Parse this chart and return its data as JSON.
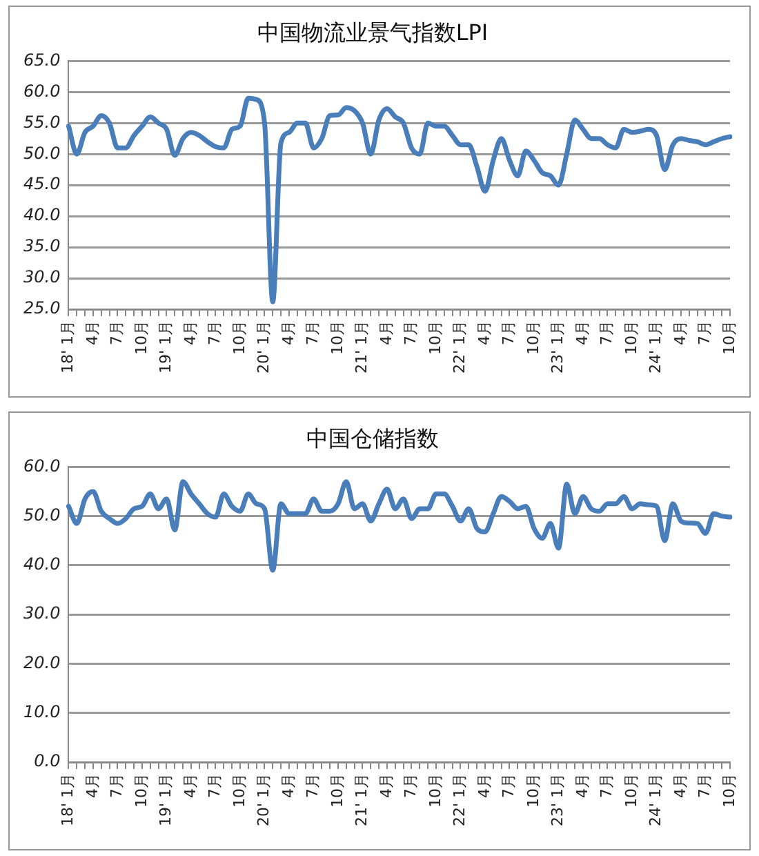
{
  "chart_data": [
    {
      "type": "line",
      "title": "中国物流业景气指数LPI",
      "grid": "y",
      "marker": "none",
      "categories": [
        "18' 1月",
        null,
        null,
        "4月",
        null,
        null,
        "7月",
        null,
        null,
        "10月",
        null,
        null,
        "19' 1月",
        null,
        null,
        "4月",
        null,
        null,
        "7月",
        null,
        null,
        "10月",
        null,
        null,
        "20' 1月",
        null,
        null,
        "4月",
        null,
        null,
        "7月",
        null,
        null,
        "10月",
        null,
        null,
        "21' 1月",
        null,
        null,
        "4月",
        null,
        null,
        "7月",
        null,
        null,
        "10月",
        null,
        null,
        "22' 1月",
        null,
        null,
        "4月",
        null,
        null,
        "7月",
        null,
        null,
        "10月",
        null,
        null,
        "23' 1月",
        null,
        null,
        "4月",
        null,
        null,
        "7月",
        null,
        null,
        "10月",
        null,
        null,
        "24' 1月",
        null,
        null,
        "4月",
        null,
        null,
        "7月",
        null,
        null,
        "10月"
      ],
      "series": [
        {
          "color": "#4a7ebb",
          "values": [
            54.5,
            50,
            53.5,
            54.5,
            56.2,
            55,
            51,
            51,
            53,
            54.5,
            56,
            55,
            54,
            49.8,
            52.5,
            53.5,
            53,
            52,
            51.2,
            51,
            54,
            54.5,
            59,
            58.8,
            55,
            26.2,
            51.8,
            53.5,
            55,
            55,
            51,
            52.5,
            56.2,
            56.3,
            57.5,
            57,
            55,
            50,
            55.5,
            57.3,
            56,
            55,
            51,
            50,
            55,
            54.5,
            54.5,
            53,
            51.5,
            51.5,
            48,
            44,
            49,
            52.5,
            49,
            46.5,
            50.5,
            49,
            47,
            46.5,
            45,
            50,
            55.5,
            54,
            52.5,
            52.5,
            51.5,
            51,
            54,
            53.5,
            53.7,
            54,
            53,
            47.5,
            51.5,
            52.5,
            52.2,
            52,
            51.5,
            52,
            52.5,
            52.8
          ]
        }
      ],
      "ylim": [
        25,
        65
      ],
      "yticks": [
        {
          "value": 25,
          "label": "25.0"
        },
        {
          "value": 30,
          "label": "30.0"
        },
        {
          "value": 35,
          "label": "35.0"
        },
        {
          "value": 40,
          "label": "40.0"
        },
        {
          "value": 45,
          "label": "45.0"
        },
        {
          "value": 50,
          "label": "50.0"
        },
        {
          "value": 55,
          "label": "55.0"
        },
        {
          "value": 60,
          "label": "60.0"
        },
        {
          "value": 65,
          "label": "65.0"
        }
      ]
    },
    {
      "type": "line",
      "title": "中国仓储指数",
      "grid": "y",
      "marker": "none",
      "categories": [
        "18' 1月",
        null,
        null,
        "4月",
        null,
        null,
        "7月",
        null,
        null,
        "10月",
        null,
        null,
        "19' 1月",
        null,
        null,
        "4月",
        null,
        null,
        "7月",
        null,
        null,
        "10月",
        null,
        null,
        "20' 1月",
        null,
        null,
        "4月",
        null,
        null,
        "7月",
        null,
        null,
        "10月",
        null,
        null,
        "21' 1月",
        null,
        null,
        "4月",
        null,
        null,
        "7月",
        null,
        null,
        "10月",
        null,
        null,
        "22' 1月",
        null,
        null,
        "4月",
        null,
        null,
        "7月",
        null,
        null,
        "10月",
        null,
        null,
        "23' 1月",
        null,
        null,
        "4月",
        null,
        null,
        "7月",
        null,
        null,
        "10月",
        null,
        null,
        "24' 1月",
        null,
        null,
        "4月",
        null,
        null,
        "7月",
        null,
        null,
        "10月"
      ],
      "series": [
        {
          "color": "#4a7ebb",
          "values": [
            52,
            48.5,
            53.5,
            55,
            51,
            49.5,
            48.5,
            49.5,
            51.5,
            52,
            54.5,
            51.5,
            53.5,
            47.2,
            57,
            54.5,
            52.5,
            50.5,
            49.8,
            54.5,
            52,
            51,
            54.5,
            52.5,
            51.5,
            39,
            52.5,
            50.5,
            50.5,
            50.5,
            53.5,
            51,
            51,
            52.5,
            57,
            51.5,
            52.5,
            49,
            52.5,
            55.5,
            51.5,
            53.5,
            49.5,
            51.5,
            51.5,
            54.5,
            54.5,
            52,
            49,
            51.5,
            47.5,
            46.8,
            50.5,
            54,
            53,
            51.5,
            52,
            47.5,
            45.5,
            48.5,
            43.5,
            56.5,
            50.5,
            54,
            51.5,
            51,
            52.5,
            52.5,
            54,
            51.5,
            52.5,
            52.3,
            52,
            45,
            52.5,
            49,
            48.6,
            48.5,
            46.5,
            50.5,
            50,
            49.8
          ]
        }
      ],
      "ylim": [
        0,
        60
      ],
      "yticks": [
        {
          "value": 0,
          "label": "0.0"
        },
        {
          "value": 10,
          "label": "10.0"
        },
        {
          "value": 20,
          "label": "20.0"
        },
        {
          "value": 30,
          "label": "30.0"
        },
        {
          "value": 40,
          "label": "40.0"
        },
        {
          "value": 50,
          "label": "50.0"
        },
        {
          "value": 60,
          "label": "60.0"
        }
      ]
    }
  ]
}
